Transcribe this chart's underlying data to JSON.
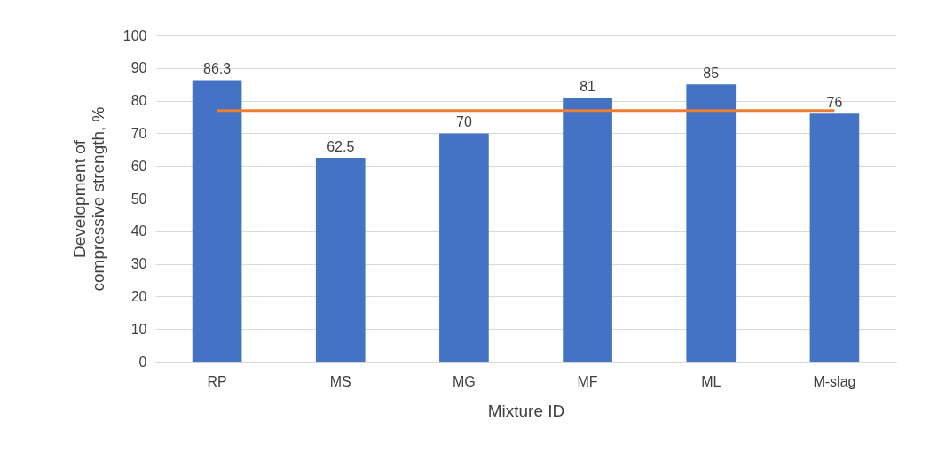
{
  "chart_data": {
    "type": "bar",
    "xlabel": "Mixture ID",
    "ylabel": "Development of compressive strength, %",
    "categories": [
      "RP",
      "MS",
      "MG",
      "MF",
      "ML",
      "M-slag"
    ],
    "series": [
      {
        "color": "#4472c4",
        "values": [
          86.3,
          62.5,
          70,
          81,
          85,
          76
        ],
        "value_labels": [
          "86.3",
          "62.5",
          "70",
          "81",
          "85",
          "76"
        ]
      },
      {
        "type": "line",
        "color": "#ed7d31",
        "values": [
          77,
          77,
          77,
          77,
          77,
          77
        ]
      }
    ],
    "ylim": [
      0,
      100
    ],
    "yticks": [
      0,
      10,
      20,
      30,
      40,
      50,
      60,
      70,
      80,
      90,
      100
    ],
    "grid": "y"
  }
}
